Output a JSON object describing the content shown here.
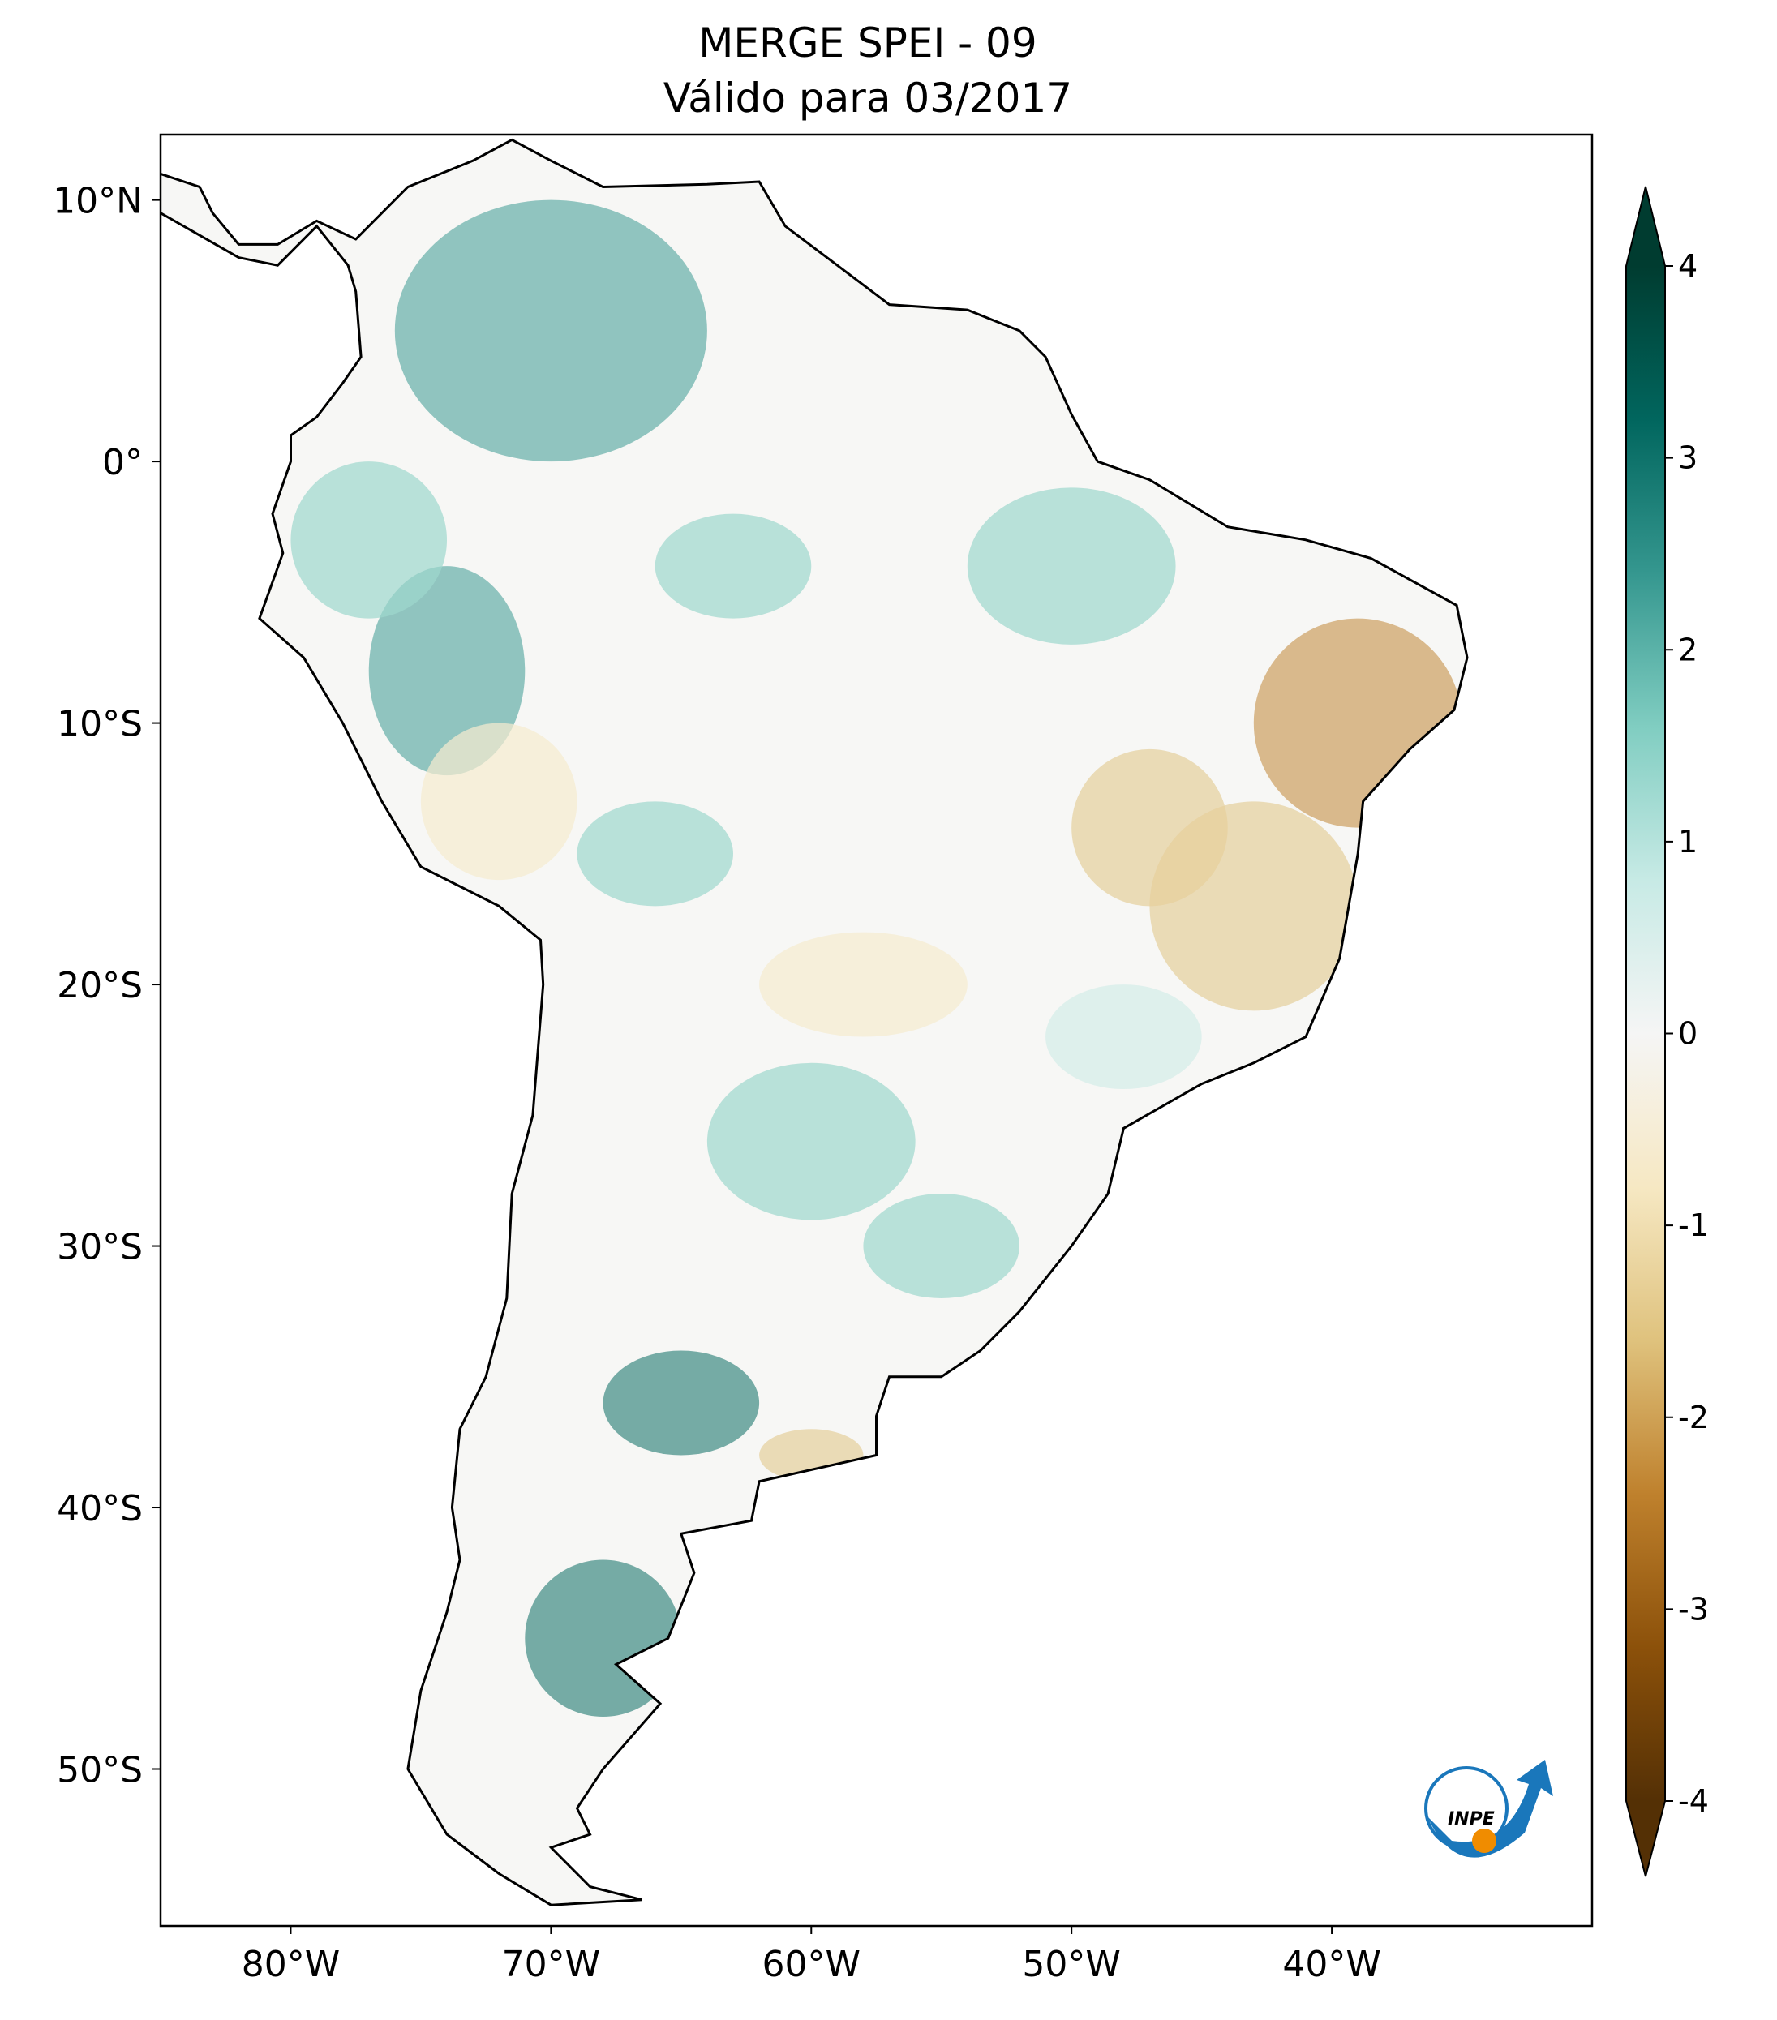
{
  "chart_data": {
    "type": "map",
    "title": "MERGE   SPEI - 09",
    "subtitle": "Válido para 03/2017",
    "xlim": [
      -85,
      -30
    ],
    "ylim": [
      -56,
      12.5
    ],
    "xticks": [
      {
        "value": -80,
        "label": "80°W"
      },
      {
        "value": -70,
        "label": "70°W"
      },
      {
        "value": -60,
        "label": "60°W"
      },
      {
        "value": -50,
        "label": "50°W"
      },
      {
        "value": -40,
        "label": "40°W"
      }
    ],
    "yticks": [
      {
        "value": 10,
        "label": "10°N"
      },
      {
        "value": 0,
        "label": "0°"
      },
      {
        "value": -10,
        "label": "10°S"
      },
      {
        "value": -20,
        "label": "20°S"
      },
      {
        "value": -30,
        "label": "30°S"
      },
      {
        "value": -40,
        "label": "40°S"
      },
      {
        "value": -50,
        "label": "50°S"
      }
    ],
    "colorbar": {
      "clim": [
        -4,
        4
      ],
      "ticks": [
        -4,
        -3,
        -2,
        -1,
        0,
        1,
        2,
        3,
        4
      ],
      "extend": "both",
      "colors": [
        "#543005",
        "#8c510a",
        "#bf812d",
        "#dfc27d",
        "#f6e8c3",
        "#f5f5f5",
        "#c7eae5",
        "#80cdc1",
        "#35978f",
        "#01665e",
        "#003c30"
      ]
    },
    "logo_text": "INPE"
  }
}
